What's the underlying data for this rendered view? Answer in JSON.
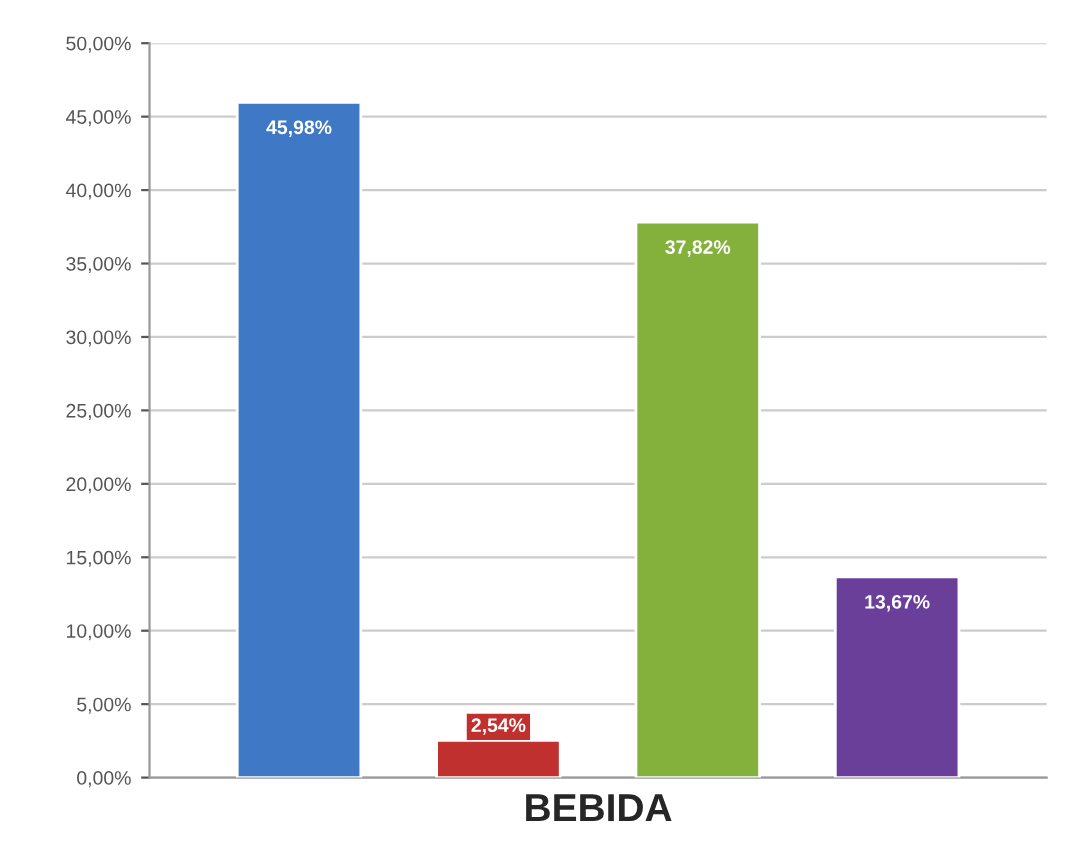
{
  "chart_data": {
    "type": "bar",
    "xlabel": "BEBIDA",
    "categories": [
      null,
      null,
      null,
      null
    ],
    "values": [
      45.98,
      2.54,
      37.82,
      13.67
    ],
    "colors": [
      "#3f78c4",
      "#c0302e",
      "#84b03c",
      "#6a3f9a"
    ],
    "value_labels": [
      "45,98%",
      "2,54%",
      "37,82%",
      "13,67%"
    ],
    "ylim": [
      0,
      50
    ],
    "yticks": [
      {
        "value": 0,
        "label": "0,00%"
      },
      {
        "value": 5,
        "label": "5,00%"
      },
      {
        "value": 10,
        "label": "10,00%"
      },
      {
        "value": 15,
        "label": "15,00%"
      },
      {
        "value": 20,
        "label": "20,00%"
      },
      {
        "value": 25,
        "label": "25,00%"
      },
      {
        "value": 30,
        "label": "30,00%"
      },
      {
        "value": 35,
        "label": "35,00%"
      },
      {
        "value": 40,
        "label": "40,00%"
      },
      {
        "value": 45,
        "label": "45,00%"
      },
      {
        "value": 50,
        "label": "50,00%"
      }
    ],
    "grid": "y"
  }
}
